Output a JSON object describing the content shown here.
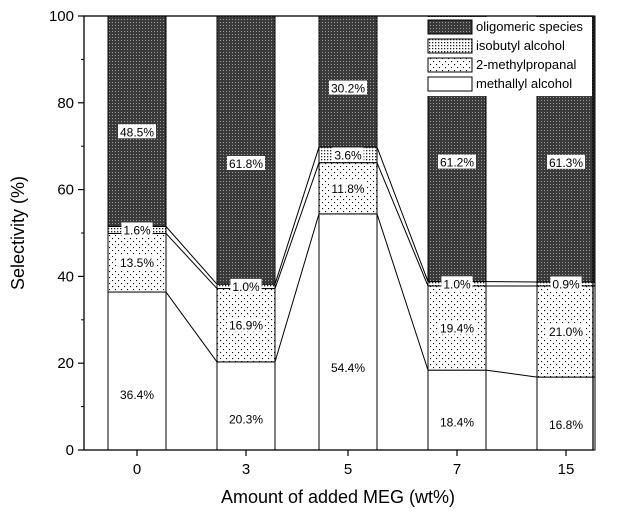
{
  "chart_data": {
    "type": "bar",
    "stacked": true,
    "categories": [
      "0",
      "3",
      "5",
      "7",
      "15"
    ],
    "xlabel": "Amount of added MEG (wt%)",
    "ylabel": "Selectivity (%)",
    "ylim": [
      0,
      100
    ],
    "yticks": [
      0,
      20,
      40,
      60,
      80,
      100
    ],
    "legend_position": "top-right",
    "series": [
      {
        "name": "methallyl alcohol",
        "values": [
          36.4,
          20.3,
          54.4,
          18.4,
          16.8
        ],
        "labels": [
          "36.4%",
          "20.3%",
          "54.4%",
          "18.4%",
          "16.8%"
        ],
        "pattern": "blank"
      },
      {
        "name": "2-methylpropanal",
        "values": [
          13.5,
          16.9,
          11.8,
          19.4,
          21.0
        ],
        "labels": [
          "13.5%",
          "16.9%",
          "11.8%",
          "19.4%",
          "21.0%"
        ],
        "pattern": "sparse-dots"
      },
      {
        "name": "isobutyl alcohol",
        "values": [
          1.6,
          1.0,
          3.6,
          1.0,
          0.9
        ],
        "labels": [
          "1.6%",
          "1.0%",
          "3.6%",
          "1.0%",
          "0.9%"
        ],
        "pattern": "dense-dots"
      },
      {
        "name": "oligomeric species",
        "values": [
          48.5,
          61.8,
          30.2,
          61.2,
          61.3
        ],
        "labels": [
          "48.5%",
          "61.8%",
          "30.2%",
          "61.2%",
          "61.3%"
        ],
        "pattern": "dark-dots"
      }
    ],
    "legend_order": [
      "oligomeric species",
      "isobutyl alcohol",
      "2-methylpropanal",
      "methallyl alcohol"
    ],
    "connector_lines": true
  }
}
